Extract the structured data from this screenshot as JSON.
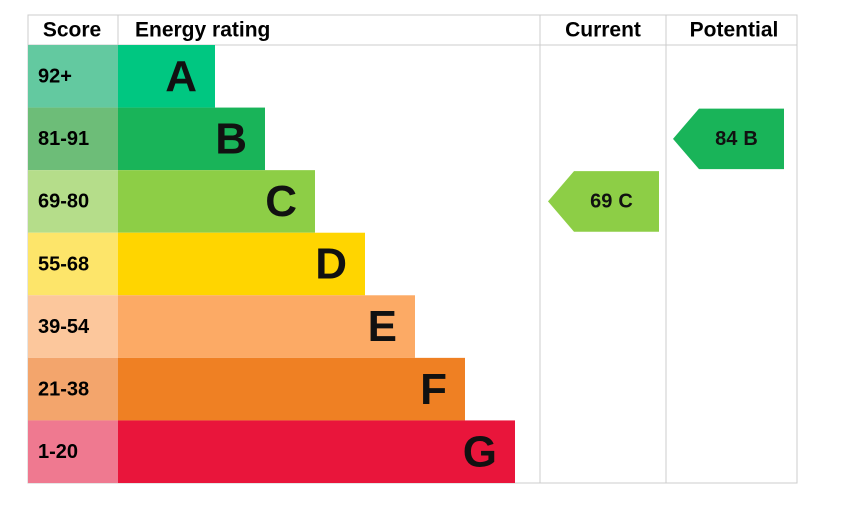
{
  "chart_data": {
    "type": "epc",
    "headers": [
      "Score",
      "Energy rating",
      "Current",
      "Potential"
    ],
    "bands": [
      {
        "score": "92+",
        "letter": "A",
        "color": "#00c781",
        "score_color": "#63c9a0"
      },
      {
        "score": "81-91",
        "letter": "B",
        "color": "#19b459",
        "score_color": "#6dbd78"
      },
      {
        "score": "69-80",
        "letter": "C",
        "color": "#8dce46",
        "score_color": "#b5dd8a"
      },
      {
        "score": "55-68",
        "letter": "D",
        "color": "#ffd500",
        "score_color": "#fde56a"
      },
      {
        "score": "39-54",
        "letter": "E",
        "color": "#fcaa65",
        "score_color": "#fcc79c"
      },
      {
        "score": "21-38",
        "letter": "F",
        "color": "#ef8023",
        "score_color": "#f3a56c"
      },
      {
        "score": "1-20",
        "letter": "G",
        "color": "#e9153b",
        "score_color": "#ef7990"
      }
    ],
    "current": {
      "value": 69,
      "rating": "C"
    },
    "potential": {
      "value": 84,
      "rating": "B"
    }
  }
}
